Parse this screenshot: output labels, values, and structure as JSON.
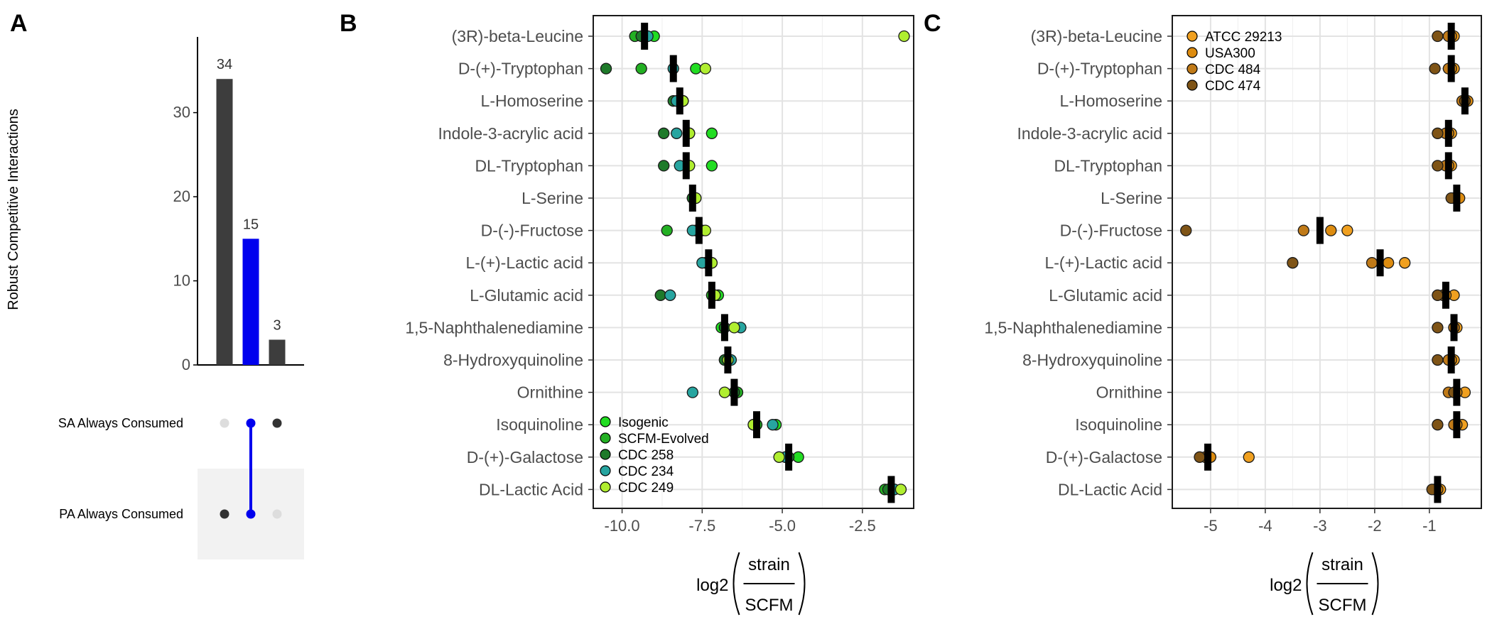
{
  "panel_labels": [
    "A",
    "B",
    "C"
  ],
  "chart_data": [
    {
      "panel": "A",
      "type": "bar",
      "ylabel": "Robust Competitive Interactions",
      "yticks": [
        0,
        10,
        20,
        30
      ],
      "ylim": [
        0,
        39
      ],
      "values": [
        34,
        15,
        3
      ],
      "value_labels": [
        "34",
        "15",
        "3"
      ],
      "bar_colors": [
        "#3d3d3d",
        "#0000ee",
        "#3d3d3d"
      ],
      "sets": [
        "SA Always Consumed",
        "PA Always Consumed"
      ],
      "matrix": [
        [
          false,
          true
        ],
        [
          true,
          true
        ],
        [
          true,
          false
        ]
      ],
      "highlight_color": "#0000ee"
    },
    {
      "panel": "B",
      "type": "scatter",
      "xlabel_prefix": "log2",
      "xlabel_num": "strain",
      "xlabel_den": "SCFM",
      "xticks": [
        -10.0,
        -7.5,
        -5.0,
        -2.5
      ],
      "xtick_labels": [
        "-10.0",
        "-7.5",
        "-5.0",
        "-2.5"
      ],
      "xlim": [
        -10.9,
        -0.9
      ],
      "legend_position": "bottom-left",
      "compounds": [
        "(3R)-beta-Leucine",
        "D-(+)-Tryptophan",
        "L-Homoserine",
        "Indole-3-acrylic acid",
        "DL-Tryptophan",
        "L-Serine",
        "D-(-)-Fructose",
        "L-(+)-Lactic acid",
        "L-Glutamic acid",
        "1,5-Naphthalenediamine",
        "8-Hydroxyquinoline",
        "Ornithine",
        "Isoquinoline",
        "D-(+)-Galactose",
        "DL-Lactic Acid"
      ],
      "medians": [
        -9.3,
        -8.4,
        -8.2,
        -8.0,
        -8.0,
        -7.8,
        -7.6,
        -7.3,
        -7.2,
        -6.8,
        -6.7,
        -6.5,
        -5.8,
        -4.8,
        -1.6
      ],
      "series": [
        {
          "name": "Isogenic",
          "color": "#22dd22",
          "values": [
            -9.0,
            -7.7,
            -8.1,
            -7.2,
            -7.2,
            -7.8,
            -7.5,
            -7.2,
            -7.0,
            -6.9,
            -6.8,
            -6.4,
            -5.2,
            -4.5,
            -1.5
          ]
        },
        {
          "name": "SCFM-Evolved",
          "color": "#23b023",
          "values": [
            -9.6,
            -9.4,
            -8.1,
            -7.9,
            -8.0,
            -7.8,
            -8.6,
            -7.3,
            -7.2,
            -6.8,
            -6.7,
            -6.4,
            -5.8,
            -4.9,
            -1.8
          ]
        },
        {
          "name": "CDC 258",
          "color": "#1e7a2a",
          "values": [
            -9.4,
            -10.5,
            -8.4,
            -8.7,
            -8.7,
            -7.8,
            -7.7,
            -7.4,
            -8.8,
            -6.8,
            -6.8,
            -6.5,
            -5.9,
            -4.8,
            -1.7
          ]
        },
        {
          "name": "CDC 234",
          "color": "#27a5a0",
          "values": [
            -9.2,
            -8.4,
            -8.3,
            -8.3,
            -8.2,
            -7.7,
            -7.8,
            -7.5,
            -8.5,
            -6.3,
            -6.6,
            -7.8,
            -5.3,
            -4.9,
            -1.5
          ]
        },
        {
          "name": "CDC 249",
          "color": "#b0ee30",
          "values": [
            -1.2,
            -7.4,
            -8.1,
            -7.9,
            -7.9,
            -7.7,
            -7.4,
            -7.2,
            -7.1,
            -6.5,
            -6.7,
            -6.8,
            -5.9,
            -5.1,
            -1.3
          ]
        }
      ]
    },
    {
      "panel": "C",
      "type": "scatter",
      "xlabel_prefix": "log2",
      "xlabel_num": "strain",
      "xlabel_den": "SCFM",
      "xticks": [
        -5,
        -4,
        -3,
        -2,
        -1
      ],
      "xtick_labels": [
        "-5",
        "-4",
        "-3",
        "-2",
        "-1"
      ],
      "xlim": [
        -5.7,
        -0.05
      ],
      "legend_position": "top-left",
      "compounds": [
        "(3R)-beta-Leucine",
        "D-(+)-Tryptophan",
        "L-Homoserine",
        "Indole-3-acrylic acid",
        "DL-Tryptophan",
        "L-Serine",
        "D-(-)-Fructose",
        "L-(+)-Lactic acid",
        "L-Glutamic acid",
        "1,5-Naphthalenediamine",
        "8-Hydroxyquinoline",
        "Ornithine",
        "Isoquinoline",
        "D-(+)-Galactose",
        "DL-Lactic Acid"
      ],
      "medians": [
        -0.6,
        -0.6,
        -0.35,
        -0.65,
        -0.65,
        -0.5,
        -3.0,
        -1.9,
        -0.7,
        -0.55,
        -0.6,
        -0.5,
        -0.5,
        -5.05,
        -0.85
      ],
      "series": [
        {
          "name": "ATCC 29213",
          "color": "#f0a020",
          "values": [
            -0.55,
            -0.55,
            -0.35,
            -0.6,
            -0.6,
            -0.5,
            -2.5,
            -1.45,
            -0.55,
            -0.5,
            -0.55,
            -0.35,
            -0.4,
            -4.3,
            -0.8
          ]
        },
        {
          "name": "USA300",
          "color": "#dd8c10",
          "values": [
            -0.6,
            -0.6,
            -0.3,
            -0.65,
            -0.65,
            -0.45,
            -2.8,
            -1.75,
            -0.7,
            -0.55,
            -0.6,
            -0.5,
            -0.5,
            -5.0,
            -0.85
          ]
        },
        {
          "name": "CDC 484",
          "color": "#c07a18",
          "values": [
            -0.65,
            -0.65,
            -0.4,
            -0.7,
            -0.7,
            -0.55,
            -3.3,
            -2.05,
            -0.75,
            -0.55,
            -0.65,
            -0.65,
            -0.55,
            -5.1,
            -0.9
          ]
        },
        {
          "name": "CDC 474",
          "color": "#7f5416",
          "values": [
            -0.85,
            -0.9,
            -0.35,
            -0.85,
            -0.85,
            -0.6,
            -5.45,
            -3.5,
            -0.85,
            -0.85,
            -0.85,
            -0.55,
            -0.85,
            -5.2,
            -0.95
          ]
        }
      ]
    }
  ]
}
